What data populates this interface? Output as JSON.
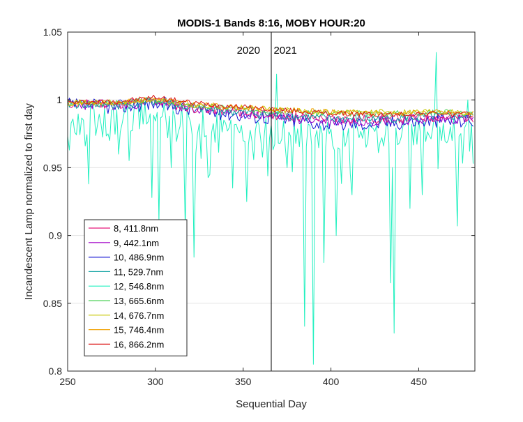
{
  "chart_data": {
    "type": "line",
    "title": "MODIS-1 Bands 8:16, MOBY HOUR:20",
    "xlabel": "Sequential Day",
    "ylabel": "Incandescent Lamp normalized to first day",
    "xlim": [
      250,
      482
    ],
    "ylim": [
      0.8,
      1.05
    ],
    "xticks": [
      250,
      300,
      350,
      400,
      450
    ],
    "yticks": [
      0.8,
      0.85,
      0.9,
      0.95,
      1,
      1.05
    ],
    "ytick_labels": [
      "0.8",
      "0.85",
      "0.9",
      "0.95",
      "1",
      "1.05"
    ],
    "grid": "y-major",
    "legend_position": "lower-left",
    "annotations": [
      {
        "text": "2020",
        "x": 353
      },
      {
        "text": "2021",
        "x": 374
      }
    ],
    "vline_x": 366,
    "series_params": {
      "x_start": 250,
      "x_end": 481,
      "x_step": 1
    },
    "series": [
      {
        "name": "8, 411.8nm",
        "color": "#e8177a",
        "anchors": [
          [
            250,
            0.997
          ],
          [
            280,
            0.997
          ],
          [
            300,
            0.999
          ],
          [
            320,
            0.994
          ],
          [
            366,
            0.989
          ],
          [
            400,
            0.986
          ],
          [
            430,
            0.986
          ],
          [
            460,
            0.987
          ],
          [
            481,
            0.987
          ]
        ],
        "noise": 0.0035,
        "seed": 11
      },
      {
        "name": "9, 442.1nm",
        "color": "#a000c8",
        "anchors": [
          [
            250,
            0.997
          ],
          [
            280,
            0.996
          ],
          [
            300,
            0.999
          ],
          [
            320,
            0.994
          ],
          [
            366,
            0.988
          ],
          [
            400,
            0.984
          ],
          [
            430,
            0.985
          ],
          [
            460,
            0.986
          ],
          [
            481,
            0.986
          ]
        ],
        "noise": 0.004,
        "seed": 23
      },
      {
        "name": "10, 486.9nm",
        "color": "#1414d2",
        "anchors": [
          [
            250,
            0.996
          ],
          [
            280,
            0.995
          ],
          [
            300,
            0.998
          ],
          [
            320,
            0.993
          ],
          [
            366,
            0.987
          ],
          [
            400,
            0.982
          ],
          [
            430,
            0.983
          ],
          [
            460,
            0.985
          ],
          [
            481,
            0.985
          ]
        ],
        "noise": 0.0055,
        "seed": 37
      },
      {
        "name": "11, 529.7nm",
        "color": "#0aa0a0",
        "anchors": [
          [
            250,
            0.997
          ],
          [
            280,
            0.996
          ],
          [
            300,
            0.999
          ],
          [
            320,
            0.994
          ],
          [
            366,
            0.989
          ],
          [
            400,
            0.986
          ],
          [
            430,
            0.986
          ],
          [
            460,
            0.988
          ],
          [
            481,
            0.988
          ]
        ],
        "noise": 0.0035,
        "seed": 41
      },
      {
        "name": "12, 546.8nm",
        "color": "#22f0c0",
        "anchors": [
          [
            250,
            0.985
          ],
          [
            280,
            0.985
          ],
          [
            300,
            0.99
          ],
          [
            320,
            0.982
          ],
          [
            366,
            0.975
          ],
          [
            400,
            0.972
          ],
          [
            430,
            0.975
          ],
          [
            460,
            0.98
          ],
          [
            481,
            0.972
          ]
        ],
        "noise": 0.012,
        "seed": 53,
        "spikes": [
          [
            251,
            0.963
          ],
          [
            262,
            0.938
          ],
          [
            274,
            0.97
          ],
          [
            279,
            0.96
          ],
          [
            286,
            0.977
          ],
          [
            298,
            0.928
          ],
          [
            302,
            0.91
          ],
          [
            309,
            0.95
          ],
          [
            317,
            0.903
          ],
          [
            322,
            0.884
          ],
          [
            331,
            0.945
          ],
          [
            344,
            0.935
          ],
          [
            352,
            0.925
          ],
          [
            364,
            0.944
          ],
          [
            369,
            1.019
          ],
          [
            375,
            0.95
          ],
          [
            385,
            0.833
          ],
          [
            390,
            0.805
          ],
          [
            396,
            0.88
          ],
          [
            403,
            0.9
          ],
          [
            412,
            0.93
          ],
          [
            420,
            0.965
          ],
          [
            434,
            0.865
          ],
          [
            436,
            0.828
          ],
          [
            445,
            0.92
          ],
          [
            452,
            0.93
          ],
          [
            460,
            1.035
          ],
          [
            463,
            0.97
          ],
          [
            472,
            0.907
          ],
          [
            478,
            1.0
          ],
          [
            481,
            0.953
          ]
        ]
      },
      {
        "name": "13, 665.6nm",
        "color": "#50d25a",
        "anchors": [
          [
            250,
            0.998
          ],
          [
            280,
            0.998
          ],
          [
            300,
            1.0
          ],
          [
            320,
            0.996
          ],
          [
            366,
            0.992
          ],
          [
            400,
            0.99
          ],
          [
            430,
            0.99
          ],
          [
            460,
            0.991
          ],
          [
            481,
            0.99
          ]
        ],
        "noise": 0.0022,
        "seed": 67
      },
      {
        "name": "14, 676.7nm",
        "color": "#c8c800",
        "anchors": [
          [
            250,
            0.998
          ],
          [
            280,
            0.998
          ],
          [
            300,
            1.0
          ],
          [
            320,
            0.996
          ],
          [
            366,
            0.993
          ],
          [
            400,
            0.991
          ],
          [
            430,
            0.991
          ],
          [
            460,
            0.992
          ],
          [
            481,
            0.99
          ]
        ],
        "noise": 0.0022,
        "seed": 71
      },
      {
        "name": "15, 746.4nm",
        "color": "#f0a000",
        "anchors": [
          [
            250,
            0.998
          ],
          [
            280,
            0.998
          ],
          [
            300,
            1.001
          ],
          [
            320,
            0.997
          ],
          [
            366,
            0.993
          ],
          [
            400,
            0.991
          ],
          [
            430,
            0.99
          ],
          [
            460,
            0.991
          ],
          [
            481,
            0.99
          ]
        ],
        "noise": 0.002,
        "seed": 83
      },
      {
        "name": "16, 866.2nm",
        "color": "#dc1414",
        "anchors": [
          [
            250,
            0.998
          ],
          [
            280,
            0.999
          ],
          [
            300,
            1.002
          ],
          [
            320,
            0.998
          ],
          [
            366,
            0.993
          ],
          [
            400,
            0.99
          ],
          [
            430,
            0.989
          ],
          [
            460,
            0.99
          ],
          [
            481,
            0.989
          ]
        ],
        "noise": 0.002,
        "seed": 97
      }
    ]
  }
}
